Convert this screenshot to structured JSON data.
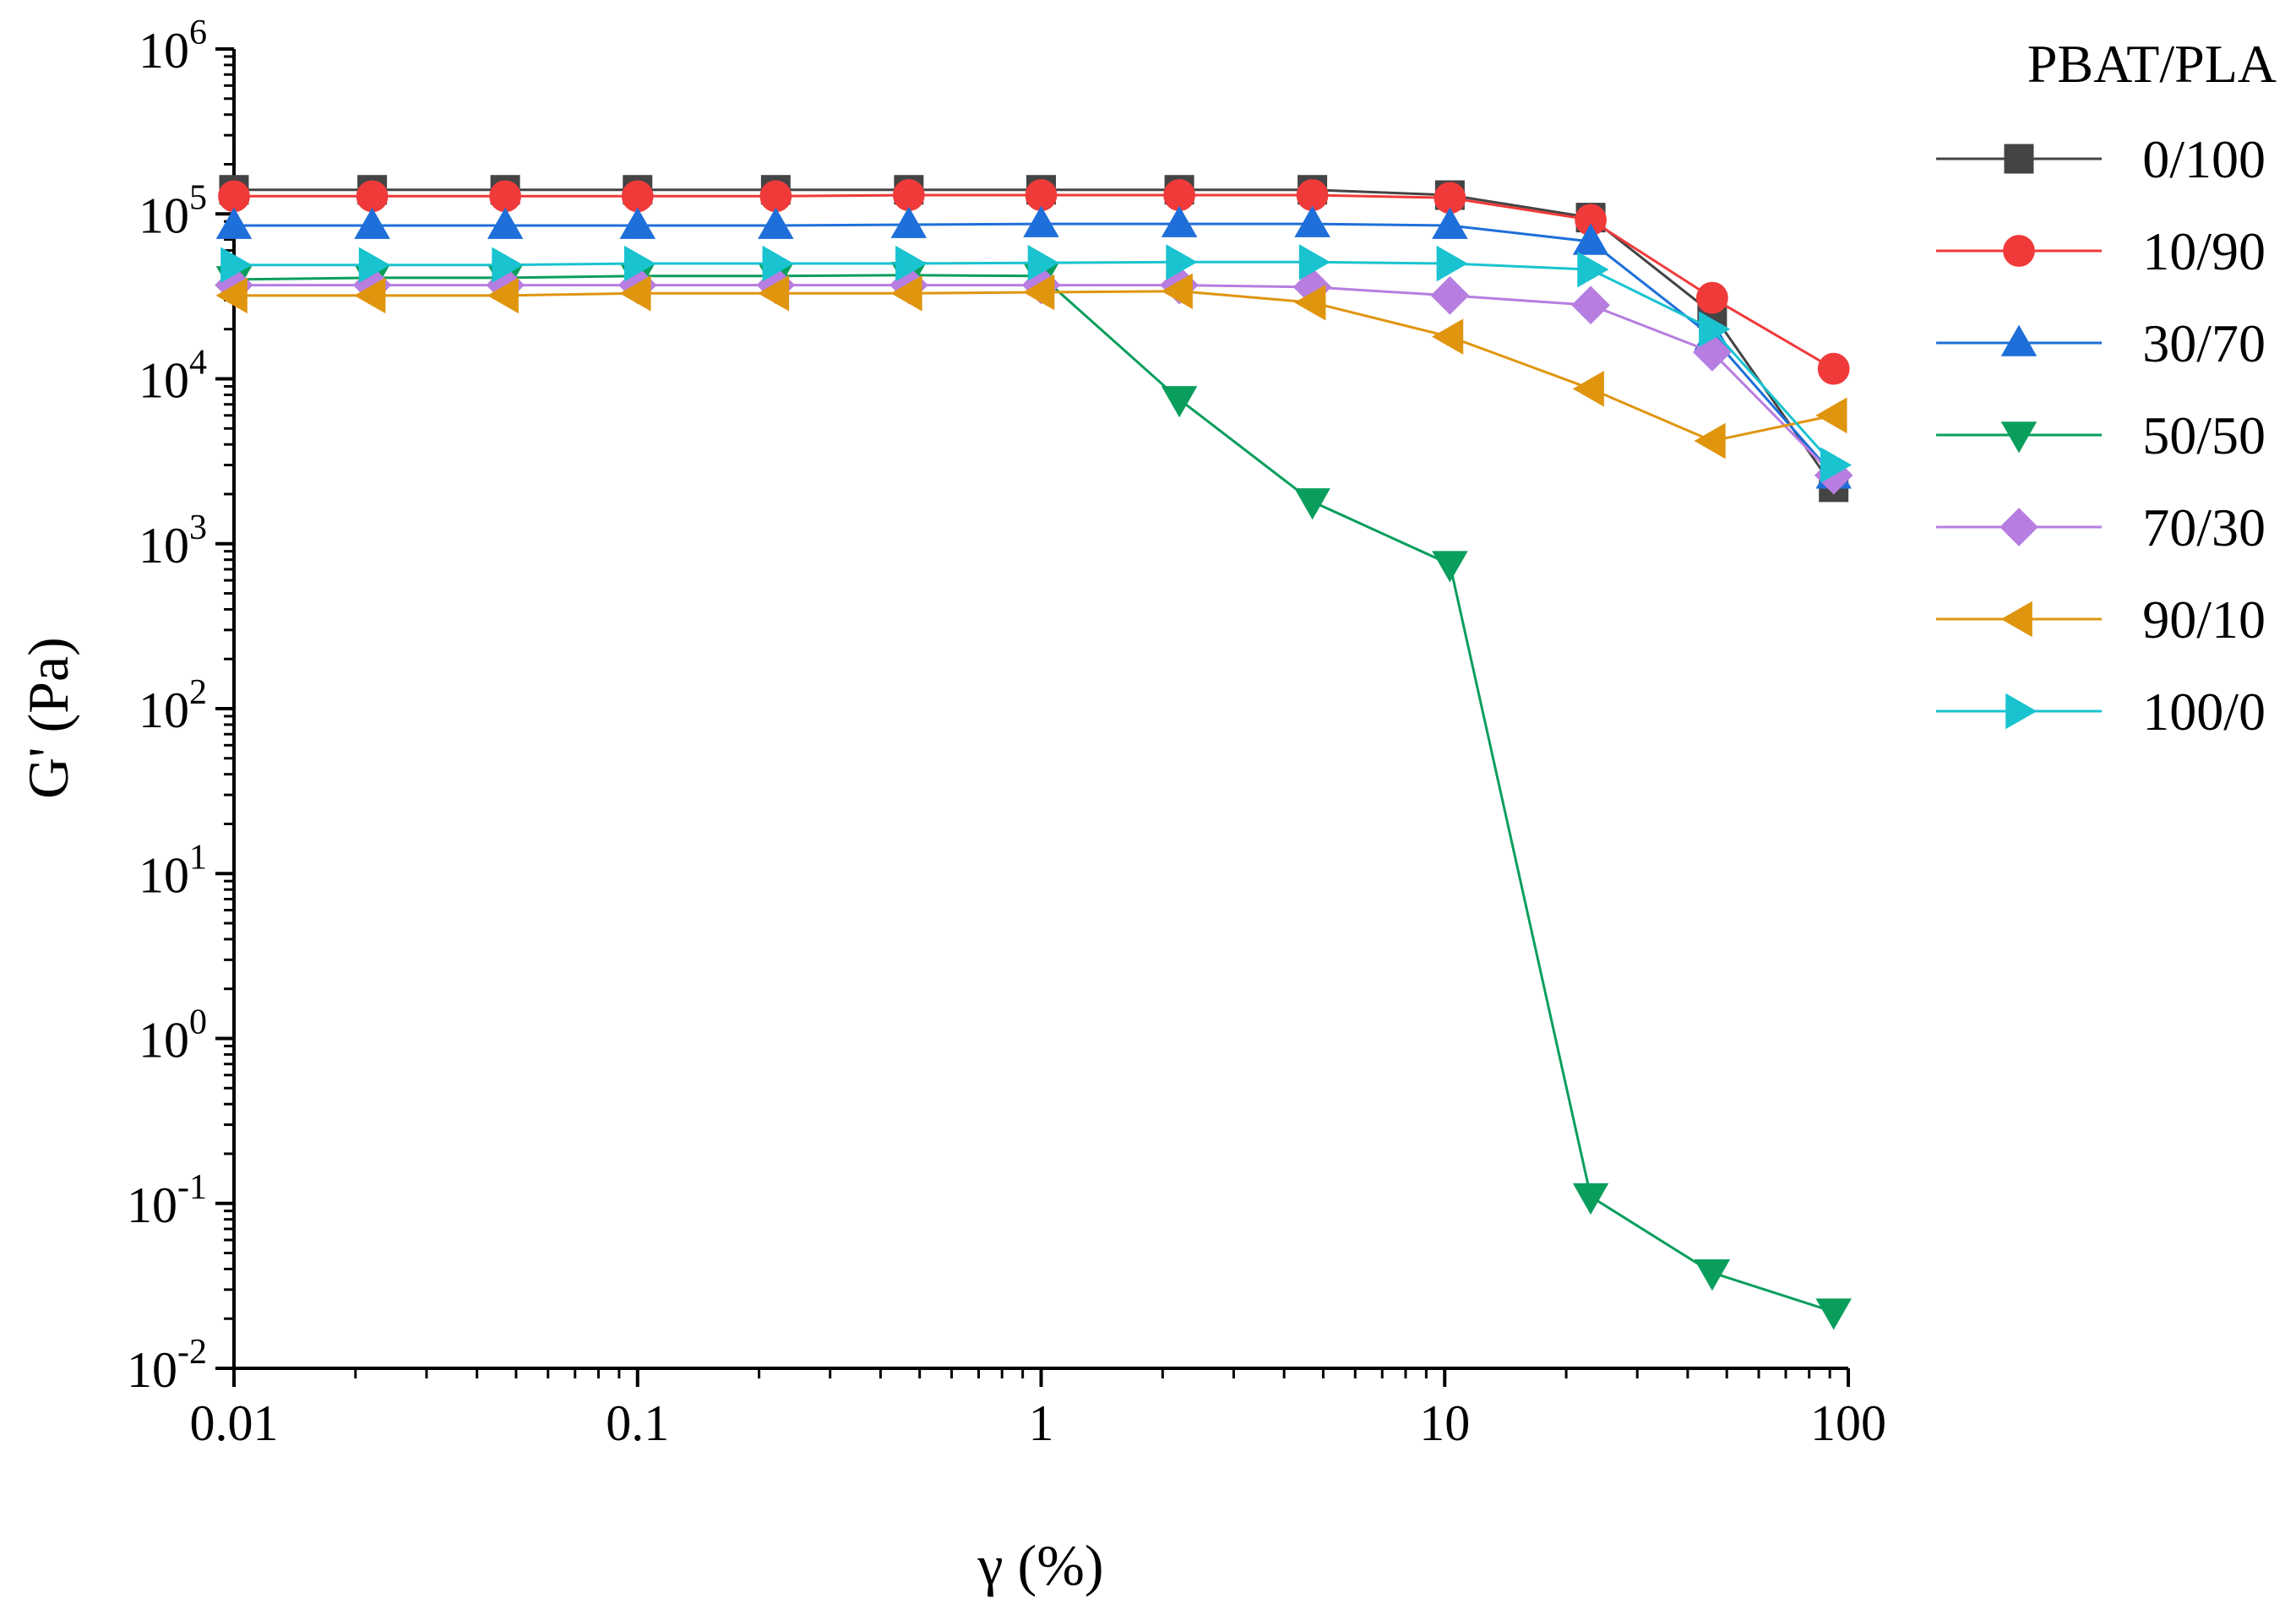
{
  "chart_data": {
    "type": "line",
    "title": "",
    "xlabel": "γ (%)",
    "ylabel": "G' (Pa)",
    "x_scale": "log",
    "y_scale": "log",
    "xlim": [
      0.01,
      100
    ],
    "ylim": [
      0.01,
      1000000
    ],
    "x_ticks": [
      {
        "value": 0.01,
        "label": "0.01"
      },
      {
        "value": 0.1,
        "label": "0.1"
      },
      {
        "value": 1,
        "label": "1"
      },
      {
        "value": 10,
        "label": "10"
      },
      {
        "value": 100,
        "label": "100"
      }
    ],
    "y_ticks": [
      {
        "value": 0.01,
        "base": "10",
        "exp": "-2"
      },
      {
        "value": 0.1,
        "base": "10",
        "exp": "-1"
      },
      {
        "value": 1,
        "base": "10",
        "exp": "0"
      },
      {
        "value": 10,
        "base": "10",
        "exp": "1"
      },
      {
        "value": 100,
        "base": "10",
        "exp": "2"
      },
      {
        "value": 1000,
        "base": "10",
        "exp": "3"
      },
      {
        "value": 10000,
        "base": "10",
        "exp": "4"
      },
      {
        "value": 100000,
        "base": "10",
        "exp": "5"
      },
      {
        "value": 1000000,
        "base": "10",
        "exp": "6"
      }
    ],
    "legend_title": "PBAT/PLA",
    "legend_position": "right",
    "x": [
      0.01,
      0.022,
      0.047,
      0.1,
      0.22,
      0.47,
      1.0,
      2.2,
      4.7,
      10.3,
      23,
      46,
      92
    ],
    "series": [
      {
        "name": "0/100",
        "color": "#444444",
        "marker": "square",
        "values": [
          140000,
          140000,
          140000,
          140000,
          140000,
          140000,
          140000,
          140000,
          140000,
          130000,
          95000,
          25000,
          2200
        ]
      },
      {
        "name": "10/90",
        "color": "#f03a3a",
        "marker": "circle",
        "values": [
          128000,
          128000,
          128000,
          128000,
          128000,
          130000,
          130000,
          130000,
          130000,
          125000,
          92000,
          31000,
          11500
        ]
      },
      {
        "name": "30/70",
        "color": "#1e6fd9",
        "marker": "triangle-up",
        "values": [
          85000,
          85000,
          85000,
          85000,
          85000,
          86000,
          87000,
          87000,
          87000,
          85000,
          68000,
          18000,
          2600
        ]
      },
      {
        "name": "50/50",
        "color": "#0a9e5c",
        "marker": "triangle-down",
        "values": [
          40000,
          41000,
          41000,
          42000,
          42000,
          42500,
          42000,
          7500,
          1800,
          750,
          0.11,
          0.038,
          0.022
        ]
      },
      {
        "name": "70/30",
        "color": "#b77de0",
        "marker": "diamond",
        "values": [
          37000,
          37000,
          37000,
          37000,
          37000,
          37000,
          37000,
          37000,
          36000,
          32000,
          28000,
          14500,
          2600
        ]
      },
      {
        "name": "90/10",
        "color": "#e0950f",
        "marker": "triangle-left",
        "values": [
          32000,
          32000,
          32000,
          33000,
          33000,
          33000,
          33500,
          34000,
          29000,
          18000,
          8700,
          4200,
          6000
        ]
      },
      {
        "name": "100/0",
        "color": "#19c3d0",
        "marker": "triangle-right",
        "values": [
          49000,
          49000,
          49000,
          50000,
          50000,
          50000,
          50500,
          51000,
          51000,
          50000,
          46000,
          20000,
          3000
        ]
      }
    ]
  }
}
